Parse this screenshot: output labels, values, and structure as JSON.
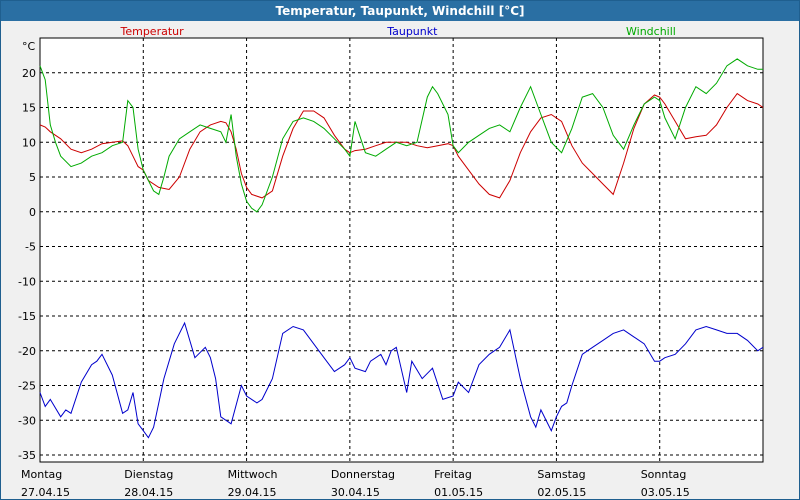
{
  "window": {
    "title": "Temperatur, Taupunkt, Windchill [°C]"
  },
  "chart_data": {
    "type": "line",
    "title": "Temperatur, Taupunkt, Windchill [°C]",
    "ylabel": "°C",
    "ylim": [
      -36,
      25
    ],
    "yticks": [
      20,
      15,
      10,
      5,
      0,
      -5,
      -10,
      -15,
      -20,
      -25,
      -30,
      -35
    ],
    "xlim": [
      0,
      7
    ],
    "grid": true,
    "day_labels": [
      {
        "day": "Montag",
        "date": "27.04.15"
      },
      {
        "day": "Dienstag",
        "date": "28.04.15"
      },
      {
        "day": "Mittwoch",
        "date": "29.04.15"
      },
      {
        "day": "Donnerstag",
        "date": "30.04.15"
      },
      {
        "day": "Freitag",
        "date": "01.05.15"
      },
      {
        "day": "Samstag",
        "date": "02.05.15"
      },
      {
        "day": "Sonntag",
        "date": "03.05.15"
      }
    ],
    "series": [
      {
        "name": "Temperatur",
        "color": "#cc0000",
        "x": [
          0,
          0.05,
          0.1,
          0.2,
          0.3,
          0.4,
          0.5,
          0.6,
          0.7,
          0.8,
          0.85,
          0.9,
          0.95,
          1.0,
          1.05,
          1.15,
          1.25,
          1.35,
          1.45,
          1.55,
          1.65,
          1.75,
          1.8,
          1.85,
          1.9,
          1.95,
          2.0,
          2.05,
          2.15,
          2.25,
          2.35,
          2.45,
          2.55,
          2.65,
          2.75,
          2.85,
          2.95,
          3.0,
          3.05,
          3.15,
          3.25,
          3.35,
          3.45,
          3.55,
          3.65,
          3.75,
          3.85,
          3.95,
          4.0,
          4.05,
          4.15,
          4.25,
          4.35,
          4.45,
          4.55,
          4.65,
          4.75,
          4.85,
          4.95,
          5.05,
          5.15,
          5.25,
          5.35,
          5.45,
          5.55,
          5.65,
          5.75,
          5.85,
          5.95,
          6.0,
          6.05,
          6.15,
          6.25,
          6.35,
          6.45,
          6.55,
          6.65,
          6.75,
          6.85,
          6.95,
          7.0
        ],
        "values": [
          12.5,
          12.2,
          11.5,
          10.5,
          9.0,
          8.5,
          9.0,
          9.8,
          10.0,
          10.2,
          9.5,
          8.0,
          6.5,
          6.0,
          4.5,
          3.5,
          3.2,
          5.0,
          9.0,
          11.5,
          12.5,
          13.0,
          12.8,
          11.5,
          9.0,
          5.5,
          3.5,
          2.5,
          2.0,
          3.0,
          8.0,
          12.0,
          14.5,
          14.5,
          13.5,
          11.0,
          9.0,
          8.5,
          8.8,
          9.0,
          9.5,
          10.0,
          10.0,
          10.0,
          9.5,
          9.2,
          9.5,
          9.8,
          9.5,
          8.0,
          6.0,
          4.0,
          2.5,
          2.0,
          4.5,
          8.5,
          11.5,
          13.5,
          14.0,
          13.0,
          9.5,
          7.0,
          5.5,
          4.0,
          2.5,
          7.0,
          12.0,
          15.5,
          16.8,
          16.5,
          15.5,
          13.0,
          10.5,
          10.8,
          11.0,
          12.5,
          15.0,
          17.0,
          16.0,
          15.5,
          15.0
        ]
      },
      {
        "name": "Taupunkt",
        "color": "#0000cc",
        "x": [
          0,
          0.05,
          0.1,
          0.2,
          0.25,
          0.3,
          0.4,
          0.5,
          0.55,
          0.6,
          0.7,
          0.8,
          0.85,
          0.9,
          0.95,
          1.0,
          1.05,
          1.1,
          1.15,
          1.2,
          1.3,
          1.4,
          1.5,
          1.6,
          1.65,
          1.7,
          1.75,
          1.85,
          1.95,
          2.0,
          2.05,
          2.1,
          2.15,
          2.25,
          2.35,
          2.45,
          2.55,
          2.65,
          2.75,
          2.85,
          2.95,
          3.0,
          3.05,
          3.15,
          3.2,
          3.3,
          3.35,
          3.4,
          3.45,
          3.55,
          3.6,
          3.7,
          3.8,
          3.9,
          4.0,
          4.05,
          4.15,
          4.25,
          4.35,
          4.45,
          4.55,
          4.65,
          4.75,
          4.8,
          4.85,
          4.95,
          5.0,
          5.05,
          5.1,
          5.15,
          5.25,
          5.35,
          5.45,
          5.55,
          5.65,
          5.75,
          5.85,
          5.95,
          6.0,
          6.05,
          6.15,
          6.25,
          6.35,
          6.45,
          6.55,
          6.65,
          6.75,
          6.85,
          6.95,
          7.0
        ],
        "values": [
          -26.0,
          -28.0,
          -27.0,
          -29.5,
          -28.5,
          -29.0,
          -24.5,
          -22.0,
          -21.5,
          -20.5,
          -23.5,
          -29.0,
          -28.5,
          -26.0,
          -30.5,
          -31.5,
          -32.5,
          -31.0,
          -27.5,
          -24.0,
          -19.0,
          -16.0,
          -21.0,
          -19.5,
          -21.0,
          -24.0,
          -29.5,
          -30.5,
          -25.0,
          -26.5,
          -27.0,
          -27.5,
          -27.0,
          -24.0,
          -17.5,
          -16.5,
          -17.0,
          -19.0,
          -21.0,
          -23.0,
          -22.0,
          -21.0,
          -22.5,
          -23.0,
          -21.5,
          -20.5,
          -22.0,
          -20.0,
          -19.5,
          -26.0,
          -21.5,
          -24.0,
          -22.5,
          -27.0,
          -26.5,
          -24.5,
          -26.0,
          -22.0,
          -20.5,
          -19.5,
          -17.0,
          -24.0,
          -29.5,
          -31.0,
          -28.5,
          -31.5,
          -29.5,
          -28.0,
          -27.5,
          -25.0,
          -20.5,
          -19.5,
          -18.5,
          -17.5,
          -17.0,
          -18.0,
          -19.0,
          -21.5,
          -21.5,
          -21.0,
          -20.5,
          -19.0,
          -17.0,
          -16.5,
          -17.0,
          -17.5,
          -17.5,
          -18.5,
          -20.0,
          -19.5
        ]
      },
      {
        "name": "Windchill",
        "color": "#00aa00",
        "x": [
          0,
          0.05,
          0.1,
          0.15,
          0.2,
          0.3,
          0.4,
          0.5,
          0.6,
          0.7,
          0.8,
          0.85,
          0.9,
          0.95,
          1.0,
          1.05,
          1.1,
          1.15,
          1.2,
          1.25,
          1.35,
          1.45,
          1.55,
          1.65,
          1.75,
          1.8,
          1.85,
          1.9,
          1.95,
          2.0,
          2.05,
          2.1,
          2.15,
          2.25,
          2.35,
          2.45,
          2.55,
          2.65,
          2.75,
          2.85,
          2.95,
          3.0,
          3.05,
          3.15,
          3.25,
          3.35,
          3.45,
          3.55,
          3.65,
          3.75,
          3.8,
          3.85,
          3.95,
          4.0,
          4.05,
          4.15,
          4.25,
          4.35,
          4.45,
          4.55,
          4.65,
          4.75,
          4.85,
          4.95,
          5.05,
          5.15,
          5.25,
          5.35,
          5.45,
          5.55,
          5.65,
          5.75,
          5.85,
          5.95,
          6.0,
          6.05,
          6.15,
          6.25,
          6.35,
          6.45,
          6.55,
          6.65,
          6.75,
          6.85,
          6.95,
          7.0
        ],
        "values": [
          21.0,
          19.0,
          12.5,
          10.0,
          8.0,
          6.5,
          7.0,
          8.0,
          8.5,
          9.5,
          10.0,
          16.0,
          15.0,
          9.0,
          6.0,
          4.5,
          3.0,
          2.5,
          5.0,
          8.0,
          10.5,
          11.5,
          12.5,
          12.0,
          11.5,
          10.0,
          14.0,
          8.0,
          4.0,
          1.5,
          0.5,
          0.0,
          1.0,
          5.0,
          10.5,
          13.0,
          13.5,
          13.0,
          12.0,
          10.5,
          9.0,
          8.0,
          13.0,
          8.5,
          8.0,
          9.0,
          10.0,
          9.5,
          10.0,
          16.5,
          18.0,
          17.0,
          14.0,
          9.5,
          8.5,
          10.0,
          11.0,
          12.0,
          12.5,
          11.5,
          15.0,
          18.0,
          14.0,
          10.0,
          8.5,
          12.0,
          16.5,
          17.0,
          15.0,
          11.0,
          9.0,
          12.5,
          15.5,
          16.5,
          16.0,
          13.5,
          10.5,
          15.0,
          18.0,
          17.0,
          18.5,
          21.0,
          22.0,
          21.0,
          20.5,
          20.5
        ]
      }
    ]
  }
}
